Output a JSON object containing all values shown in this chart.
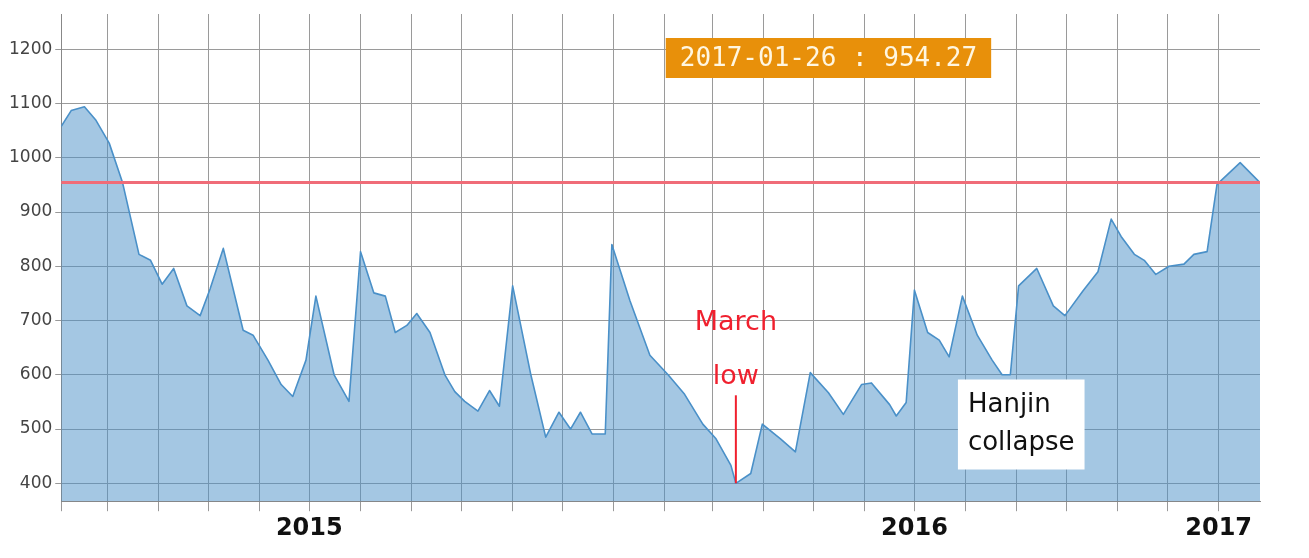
{
  "chart_data": {
    "type": "area",
    "x": [
      "2015-02-01",
      "2015-02-07",
      "2015-02-15",
      "2015-02-22",
      "2015-03-02",
      "2015-03-10",
      "2015-03-20",
      "2015-03-27",
      "2015-04-03",
      "2015-04-10",
      "2015-04-18",
      "2015-04-26",
      "2015-05-02",
      "2015-05-10",
      "2015-05-22",
      "2015-05-28",
      "2015-06-06",
      "2015-06-14",
      "2015-06-21",
      "2015-06-29",
      "2015-07-05",
      "2015-07-16",
      "2015-07-25",
      "2015-08-01",
      "2015-08-09",
      "2015-08-16",
      "2015-08-22",
      "2015-08-29",
      "2015-09-04",
      "2015-09-12",
      "2015-09-21",
      "2015-09-27",
      "2015-10-03",
      "2015-10-11",
      "2015-10-18",
      "2015-10-24",
      "2015-11-01",
      "2015-11-12",
      "2015-11-21",
      "2015-11-29",
      "2015-12-06",
      "2015-12-12",
      "2015-12-19",
      "2015-12-27",
      "2015-12-31",
      "2016-01-11",
      "2016-01-23",
      "2016-02-03",
      "2016-02-13",
      "2016-02-24",
      "2016-03-03",
      "2016-03-12",
      "2016-03-15",
      "2016-03-24",
      "2016-03-31",
      "2016-04-11",
      "2016-04-20",
      "2016-04-29",
      "2016-05-10",
      "2016-05-19",
      "2016-05-30",
      "2016-06-05",
      "2016-06-16",
      "2016-06-20",
      "2016-06-26",
      "2016-07-01",
      "2016-07-09",
      "2016-07-16",
      "2016-07-22",
      "2016-07-30",
      "2016-08-08",
      "2016-08-17",
      "2016-08-23",
      "2016-08-28",
      "2016-09-02",
      "2016-09-13",
      "2016-09-23",
      "2016-09-30",
      "2016-10-11",
      "2016-10-20",
      "2016-10-28",
      "2016-11-03",
      "2016-11-11",
      "2016-11-17",
      "2016-11-24",
      "2016-12-02",
      "2016-12-11",
      "2016-12-17",
      "2016-12-25",
      "2016-12-31",
      "2017-01-14",
      "2017-01-26"
    ],
    "series": [
      {
        "color": "#4a90c8",
        "values": [
          1058,
          1087,
          1094,
          1069,
          1027,
          955,
          822,
          811,
          767,
          796,
          727,
          709,
          758,
          833,
          682,
          673,
          627,
          582,
          560,
          627,
          745,
          600,
          551,
          827,
          751,
          745,
          678,
          691,
          713,
          678,
          600,
          569,
          551,
          533,
          571,
          542,
          764,
          600,
          485,
          531,
          500,
          531,
          491,
          491,
          840,
          736,
          636,
          600,
          564,
          509,
          482,
          433,
          400,
          418,
          509,
          482,
          458,
          604,
          567,
          527,
          582,
          585,
          545,
          524,
          549,
          756,
          678,
          664,
          633,
          745,
          673,
          627,
          600,
          600,
          764,
          796,
          727,
          709,
          755,
          790,
          887,
          855,
          822,
          811,
          785,
          800,
          804,
          822,
          827,
          951,
          991,
          954.27
        ]
      }
    ],
    "xlim": [
      "2015-02-01",
      "2017-01-26"
    ],
    "xticks": [
      {
        "value": "2015-02-01",
        "label": null
      },
      {
        "value": "2015-03-01",
        "label": null
      },
      {
        "value": "2015-04-01",
        "label": null
      },
      {
        "value": "2015-05-01",
        "label": null
      },
      {
        "value": "2015-06-01",
        "label": null
      },
      {
        "value": "2015-07-01",
        "label": "2015"
      },
      {
        "value": "2015-08-01",
        "label": null
      },
      {
        "value": "2015-09-01",
        "label": null
      },
      {
        "value": "2015-10-01",
        "label": null
      },
      {
        "value": "2015-11-01",
        "label": null
      },
      {
        "value": "2015-12-01",
        "label": null
      },
      {
        "value": "2016-01-01",
        "label": null
      },
      {
        "value": "2016-02-01",
        "label": null
      },
      {
        "value": "2016-03-01",
        "label": null
      },
      {
        "value": "2016-04-01",
        "label": null
      },
      {
        "value": "2016-05-01",
        "label": null
      },
      {
        "value": "2016-06-01",
        "label": null
      },
      {
        "value": "2016-07-01",
        "label": "2016"
      },
      {
        "value": "2016-08-01",
        "label": null
      },
      {
        "value": "2016-09-01",
        "label": null
      },
      {
        "value": "2016-10-01",
        "label": null
      },
      {
        "value": "2016-11-01",
        "label": null
      },
      {
        "value": "2016-12-01",
        "label": null
      },
      {
        "value": "2017-01-01",
        "label": "2017"
      }
    ],
    "ylim": [
      367,
      1265
    ],
    "yticks": [
      400,
      500,
      600,
      700,
      800,
      900,
      1000,
      1100,
      1200
    ],
    "ref_lines": [
      {
        "axis": "y",
        "value": 954.27,
        "color": "#f06c78"
      }
    ],
    "annotations": [
      "2017-01-26 : 954.27",
      {
        "text": "March low",
        "x": "2016-03-15",
        "y": 400
      },
      "Hanjin collapse"
    ],
    "grid": true,
    "legend": false,
    "marker": "none",
    "line_style": "solid"
  }
}
